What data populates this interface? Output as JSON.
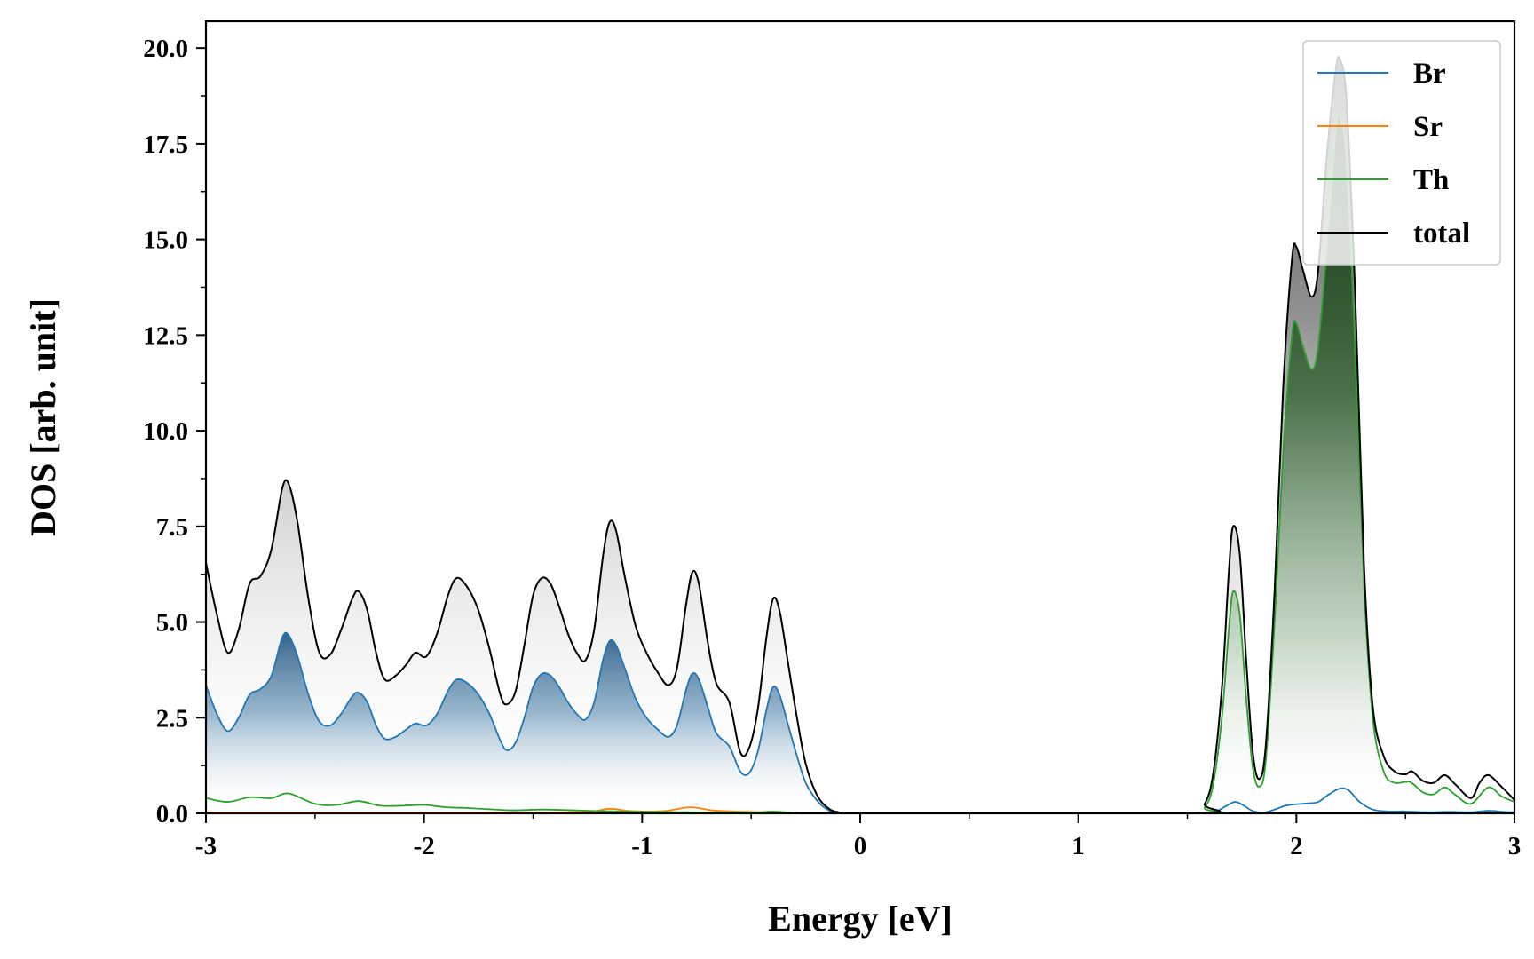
{
  "chart_data": {
    "type": "line",
    "title": "",
    "xlabel": "Energy [eV]",
    "ylabel": "DOS [arb. unit]",
    "xlim": [
      -3,
      3
    ],
    "ylim": [
      0,
      20.7
    ],
    "xticks": [
      -3,
      -2,
      -1,
      0,
      1,
      2,
      3
    ],
    "xtick_labels": [
      "-3",
      "-2",
      "-1",
      "0",
      "1",
      "2",
      "3"
    ],
    "yticks": [
      0,
      2.5,
      5,
      7.5,
      10,
      12.5,
      15,
      17.5,
      20
    ],
    "ytick_labels": [
      "0.0",
      "2.5",
      "5.0",
      "7.5",
      "10.0",
      "12.5",
      "15.0",
      "17.5",
      "20.0"
    ],
    "legend_position": "top-right",
    "grid": false,
    "series": [
      {
        "name": "Br",
        "color": "#1f77b4",
        "fill": true,
        "points": [
          [
            -3.0,
            3.35
          ],
          [
            -2.95,
            2.6
          ],
          [
            -2.9,
            2.15
          ],
          [
            -2.85,
            2.5
          ],
          [
            -2.8,
            3.1
          ],
          [
            -2.75,
            3.25
          ],
          [
            -2.7,
            3.6
          ],
          [
            -2.65,
            4.6
          ],
          [
            -2.62,
            4.65
          ],
          [
            -2.58,
            4.1
          ],
          [
            -2.53,
            3.1
          ],
          [
            -2.48,
            2.4
          ],
          [
            -2.43,
            2.3
          ],
          [
            -2.38,
            2.6
          ],
          [
            -2.33,
            3.05
          ],
          [
            -2.3,
            3.15
          ],
          [
            -2.26,
            2.9
          ],
          [
            -2.22,
            2.3
          ],
          [
            -2.18,
            1.95
          ],
          [
            -2.13,
            2.0
          ],
          [
            -2.08,
            2.2
          ],
          [
            -2.04,
            2.35
          ],
          [
            -1.99,
            2.3
          ],
          [
            -1.94,
            2.6
          ],
          [
            -1.89,
            3.2
          ],
          [
            -1.85,
            3.5
          ],
          [
            -1.8,
            3.4
          ],
          [
            -1.75,
            3.1
          ],
          [
            -1.7,
            2.6
          ],
          [
            -1.65,
            1.9
          ],
          [
            -1.62,
            1.65
          ],
          [
            -1.58,
            1.85
          ],
          [
            -1.54,
            2.5
          ],
          [
            -1.5,
            3.3
          ],
          [
            -1.46,
            3.65
          ],
          [
            -1.42,
            3.6
          ],
          [
            -1.38,
            3.3
          ],
          [
            -1.34,
            2.9
          ],
          [
            -1.3,
            2.6
          ],
          [
            -1.26,
            2.45
          ],
          [
            -1.22,
            2.9
          ],
          [
            -1.18,
            4.0
          ],
          [
            -1.15,
            4.5
          ],
          [
            -1.12,
            4.4
          ],
          [
            -1.08,
            3.8
          ],
          [
            -1.03,
            3.0
          ],
          [
            -0.98,
            2.5
          ],
          [
            -0.93,
            2.2
          ],
          [
            -0.88,
            2.0
          ],
          [
            -0.84,
            2.3
          ],
          [
            -0.8,
            3.2
          ],
          [
            -0.77,
            3.65
          ],
          [
            -0.74,
            3.5
          ],
          [
            -0.7,
            2.8
          ],
          [
            -0.66,
            2.1
          ],
          [
            -0.6,
            1.75
          ],
          [
            -0.55,
            1.1
          ],
          [
            -0.51,
            1.05
          ],
          [
            -0.47,
            1.6
          ],
          [
            -0.43,
            2.7
          ],
          [
            -0.4,
            3.3
          ],
          [
            -0.37,
            3.1
          ],
          [
            -0.33,
            2.3
          ],
          [
            -0.29,
            1.5
          ],
          [
            -0.25,
            0.8
          ],
          [
            -0.2,
            0.35
          ],
          [
            -0.15,
            0.1
          ],
          [
            -0.1,
            0.02
          ],
          [
            0.0,
            0.0
          ],
          [
            1.55,
            0.0
          ],
          [
            1.63,
            0.05
          ],
          [
            1.68,
            0.2
          ],
          [
            1.72,
            0.3
          ],
          [
            1.76,
            0.2
          ],
          [
            1.8,
            0.06
          ],
          [
            1.85,
            0.02
          ],
          [
            1.9,
            0.1
          ],
          [
            1.95,
            0.2
          ],
          [
            2.0,
            0.24
          ],
          [
            2.05,
            0.26
          ],
          [
            2.1,
            0.3
          ],
          [
            2.15,
            0.5
          ],
          [
            2.2,
            0.65
          ],
          [
            2.24,
            0.6
          ],
          [
            2.29,
            0.3
          ],
          [
            2.35,
            0.1
          ],
          [
            2.42,
            0.05
          ],
          [
            2.5,
            0.05
          ],
          [
            2.6,
            0.03
          ],
          [
            2.7,
            0.04
          ],
          [
            2.8,
            0.03
          ],
          [
            2.88,
            0.07
          ],
          [
            2.95,
            0.04
          ],
          [
            3.0,
            0.03
          ]
        ]
      },
      {
        "name": "Sr",
        "color": "#ff7f0e",
        "fill": false,
        "points": [
          [
            -3.0,
            0.02
          ],
          [
            -2.5,
            0.02
          ],
          [
            -2.0,
            0.02
          ],
          [
            -1.5,
            0.02
          ],
          [
            -1.25,
            0.04
          ],
          [
            -1.15,
            0.12
          ],
          [
            -1.05,
            0.06
          ],
          [
            -0.9,
            0.06
          ],
          [
            -0.78,
            0.16
          ],
          [
            -0.68,
            0.08
          ],
          [
            -0.58,
            0.05
          ],
          [
            -0.45,
            0.03
          ],
          [
            -0.3,
            0.01
          ],
          [
            -0.1,
            0.0
          ],
          [
            3.0,
            0.0
          ]
        ]
      },
      {
        "name": "Th",
        "color": "#2ca02c",
        "fill": true,
        "points": [
          [
            -3.0,
            0.4
          ],
          [
            -2.9,
            0.3
          ],
          [
            -2.8,
            0.42
          ],
          [
            -2.7,
            0.4
          ],
          [
            -2.62,
            0.52
          ],
          [
            -2.5,
            0.25
          ],
          [
            -2.4,
            0.22
          ],
          [
            -2.3,
            0.32
          ],
          [
            -2.2,
            0.2
          ],
          [
            -2.1,
            0.2
          ],
          [
            -2.0,
            0.22
          ],
          [
            -1.9,
            0.16
          ],
          [
            -1.8,
            0.14
          ],
          [
            -1.6,
            0.08
          ],
          [
            -1.45,
            0.1
          ],
          [
            -1.2,
            0.06
          ],
          [
            -1.0,
            0.04
          ],
          [
            -0.8,
            0.03
          ],
          [
            -0.5,
            0.02
          ],
          [
            -0.4,
            0.05
          ],
          [
            -0.3,
            0.01
          ],
          [
            -0.1,
            0.0
          ],
          [
            1.52,
            0.0
          ],
          [
            1.58,
            0.15
          ],
          [
            1.62,
            0.8
          ],
          [
            1.66,
            2.6
          ],
          [
            1.69,
            4.8
          ],
          [
            1.71,
            5.8
          ],
          [
            1.74,
            5.2
          ],
          [
            1.77,
            3.0
          ],
          [
            1.8,
            1.2
          ],
          [
            1.83,
            0.7
          ],
          [
            1.86,
            1.4
          ],
          [
            1.9,
            5.0
          ],
          [
            1.94,
            9.5
          ],
          [
            1.98,
            12.5
          ],
          [
            2.0,
            12.8
          ],
          [
            2.03,
            12.2
          ],
          [
            2.07,
            11.6
          ],
          [
            2.1,
            12.2
          ],
          [
            2.14,
            14.8
          ],
          [
            2.18,
            17.8
          ],
          [
            2.2,
            18.2
          ],
          [
            2.23,
            17.0
          ],
          [
            2.27,
            12.0
          ],
          [
            2.31,
            6.0
          ],
          [
            2.35,
            2.5
          ],
          [
            2.4,
            1.1
          ],
          [
            2.45,
            0.8
          ],
          [
            2.52,
            0.82
          ],
          [
            2.58,
            0.55
          ],
          [
            2.63,
            0.5
          ],
          [
            2.68,
            0.68
          ],
          [
            2.73,
            0.48
          ],
          [
            2.8,
            0.25
          ],
          [
            2.88,
            0.68
          ],
          [
            2.94,
            0.45
          ],
          [
            3.0,
            0.3
          ]
        ]
      },
      {
        "name": "total",
        "color": "#000000",
        "fill": true,
        "points": [
          [
            -3.0,
            6.55
          ],
          [
            -2.95,
            5.2
          ],
          [
            -2.9,
            4.2
          ],
          [
            -2.85,
            4.8
          ],
          [
            -2.8,
            6.0
          ],
          [
            -2.75,
            6.2
          ],
          [
            -2.7,
            6.9
          ],
          [
            -2.65,
            8.5
          ],
          [
            -2.62,
            8.6
          ],
          [
            -2.58,
            7.6
          ],
          [
            -2.53,
            5.6
          ],
          [
            -2.48,
            4.2
          ],
          [
            -2.43,
            4.15
          ],
          [
            -2.38,
            4.8
          ],
          [
            -2.33,
            5.6
          ],
          [
            -2.3,
            5.8
          ],
          [
            -2.26,
            5.3
          ],
          [
            -2.22,
            4.2
          ],
          [
            -2.18,
            3.5
          ],
          [
            -2.13,
            3.6
          ],
          [
            -2.08,
            3.9
          ],
          [
            -2.04,
            4.2
          ],
          [
            -1.99,
            4.1
          ],
          [
            -1.94,
            4.7
          ],
          [
            -1.89,
            5.7
          ],
          [
            -1.85,
            6.15
          ],
          [
            -1.8,
            5.9
          ],
          [
            -1.75,
            5.3
          ],
          [
            -1.7,
            4.3
          ],
          [
            -1.65,
            3.1
          ],
          [
            -1.62,
            2.85
          ],
          [
            -1.58,
            3.2
          ],
          [
            -1.54,
            4.4
          ],
          [
            -1.5,
            5.7
          ],
          [
            -1.46,
            6.15
          ],
          [
            -1.42,
            6.0
          ],
          [
            -1.38,
            5.4
          ],
          [
            -1.34,
            4.7
          ],
          [
            -1.3,
            4.2
          ],
          [
            -1.26,
            4.0
          ],
          [
            -1.22,
            4.8
          ],
          [
            -1.18,
            6.7
          ],
          [
            -1.15,
            7.6
          ],
          [
            -1.12,
            7.4
          ],
          [
            -1.08,
            6.2
          ],
          [
            -1.03,
            4.9
          ],
          [
            -0.98,
            4.2
          ],
          [
            -0.93,
            3.7
          ],
          [
            -0.88,
            3.35
          ],
          [
            -0.84,
            3.8
          ],
          [
            -0.8,
            5.4
          ],
          [
            -0.77,
            6.3
          ],
          [
            -0.74,
            6.0
          ],
          [
            -0.7,
            4.5
          ],
          [
            -0.66,
            3.4
          ],
          [
            -0.6,
            2.9
          ],
          [
            -0.55,
            1.6
          ],
          [
            -0.51,
            1.7
          ],
          [
            -0.47,
            2.7
          ],
          [
            -0.43,
            4.6
          ],
          [
            -0.4,
            5.6
          ],
          [
            -0.37,
            5.3
          ],
          [
            -0.33,
            3.9
          ],
          [
            -0.29,
            2.5
          ],
          [
            -0.25,
            1.3
          ],
          [
            -0.2,
            0.5
          ],
          [
            -0.15,
            0.15
          ],
          [
            -0.1,
            0.03
          ],
          [
            0.0,
            0.0
          ],
          [
            1.52,
            0.0
          ],
          [
            1.58,
            0.25
          ],
          [
            1.62,
            1.1
          ],
          [
            1.66,
            3.4
          ],
          [
            1.69,
            6.3
          ],
          [
            1.71,
            7.5
          ],
          [
            1.74,
            6.8
          ],
          [
            1.77,
            4.0
          ],
          [
            1.8,
            1.6
          ],
          [
            1.83,
            0.9
          ],
          [
            1.86,
            1.8
          ],
          [
            1.9,
            5.8
          ],
          [
            1.94,
            11.2
          ],
          [
            1.98,
            14.5
          ],
          [
            2.0,
            14.8
          ],
          [
            2.03,
            14.2
          ],
          [
            2.07,
            13.5
          ],
          [
            2.1,
            14.2
          ],
          [
            2.14,
            17.2
          ],
          [
            2.18,
            19.4
          ],
          [
            2.2,
            19.7
          ],
          [
            2.23,
            18.6
          ],
          [
            2.27,
            13.5
          ],
          [
            2.31,
            6.5
          ],
          [
            2.35,
            2.8
          ],
          [
            2.4,
            1.5
          ],
          [
            2.45,
            1.1
          ],
          [
            2.5,
            1.02
          ],
          [
            2.53,
            1.1
          ],
          [
            2.58,
            0.85
          ],
          [
            2.63,
            0.8
          ],
          [
            2.68,
            1.0
          ],
          [
            2.73,
            0.75
          ],
          [
            2.8,
            0.4
          ],
          [
            2.84,
            0.8
          ],
          [
            2.88,
            1.0
          ],
          [
            2.94,
            0.7
          ],
          [
            3.0,
            0.35
          ]
        ]
      }
    ]
  }
}
